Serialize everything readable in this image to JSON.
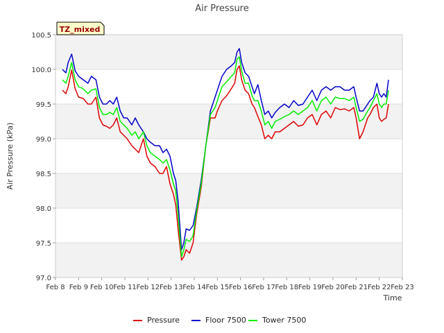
{
  "chart_data": {
    "type": "line",
    "title": "Air Pressure",
    "xlabel": "Time",
    "ylabel": "Air Pressure (kPa)",
    "badge": "TZ_mixed",
    "xlim": [
      8,
      23
    ],
    "ylim": [
      97.0,
      100.5
    ],
    "x_ticks": [
      8,
      9,
      10,
      11,
      12,
      13,
      14,
      15,
      16,
      17,
      18,
      19,
      20,
      21,
      22,
      23
    ],
    "x_tick_labels": [
      "Feb 8",
      "Feb 9",
      "Feb 10",
      "Feb 11",
      "Feb 12",
      "Feb 13",
      "Feb 14",
      "Feb 15",
      "Feb 16",
      "Feb 17",
      "Feb 18",
      "Feb 19",
      "Feb 20",
      "Feb 21",
      "Feb 22",
      "Feb 23"
    ],
    "y_ticks": [
      97.0,
      97.5,
      98.0,
      98.5,
      99.0,
      99.5,
      100.0,
      100.5
    ],
    "y_tick_labels": [
      "97.0",
      "97.5",
      "98.0",
      "98.5",
      "99.0",
      "99.5",
      "100.0",
      "100.5"
    ],
    "grid": true,
    "legend_position": "bottom-center",
    "x": [
      8.3,
      8.45,
      8.55,
      8.7,
      8.85,
      9.0,
      9.2,
      9.4,
      9.55,
      9.75,
      9.9,
      10.05,
      10.2,
      10.35,
      10.5,
      10.65,
      10.8,
      10.95,
      11.1,
      11.3,
      11.45,
      11.6,
      11.8,
      11.95,
      12.1,
      12.3,
      12.5,
      12.65,
      12.8,
      12.95,
      13.1,
      13.2,
      13.3,
      13.45,
      13.55,
      13.65,
      13.8,
      13.95,
      14.1,
      14.3,
      14.5,
      14.7,
      14.9,
      15.0,
      15.2,
      15.4,
      15.6,
      15.75,
      15.85,
      15.95,
      16.05,
      16.2,
      16.35,
      16.5,
      16.6,
      16.75,
      16.9,
      17.05,
      17.2,
      17.35,
      17.5,
      17.7,
      17.9,
      18.1,
      18.3,
      18.5,
      18.7,
      18.9,
      19.1,
      19.3,
      19.5,
      19.7,
      19.9,
      20.1,
      20.3,
      20.5,
      20.7,
      20.9,
      21.0,
      21.15,
      21.3,
      21.5,
      21.6,
      21.75,
      21.9,
      22.0,
      22.1,
      22.2,
      22.3,
      22.4
    ],
    "series": [
      {
        "name": "Pressure",
        "color": "#dd0000",
        "values": [
          99.7,
          99.65,
          99.75,
          99.99,
          99.72,
          99.6,
          99.58,
          99.5,
          99.5,
          99.6,
          99.3,
          99.2,
          99.18,
          99.15,
          99.2,
          99.3,
          99.1,
          99.05,
          99.0,
          98.9,
          98.85,
          98.8,
          99.0,
          98.75,
          98.65,
          98.6,
          98.5,
          98.5,
          98.6,
          98.35,
          98.2,
          98.05,
          97.7,
          97.25,
          97.3,
          97.4,
          97.35,
          97.5,
          97.9,
          98.3,
          98.9,
          99.3,
          99.3,
          99.4,
          99.55,
          99.62,
          99.72,
          99.8,
          100.0,
          100.05,
          99.85,
          99.7,
          99.65,
          99.5,
          99.45,
          99.32,
          99.2,
          99.0,
          99.05,
          99.0,
          99.1,
          99.1,
          99.15,
          99.2,
          99.25,
          99.18,
          99.2,
          99.3,
          99.35,
          99.2,
          99.35,
          99.4,
          99.3,
          99.45,
          99.42,
          99.43,
          99.4,
          99.45,
          99.3,
          99.0,
          99.1,
          99.3,
          99.35,
          99.45,
          99.5,
          99.3,
          99.25,
          99.28,
          99.3,
          99.5
        ]
      },
      {
        "name": "Floor 7500",
        "color": "#0000cc",
        "values": [
          100.0,
          99.95,
          100.1,
          100.22,
          99.98,
          99.9,
          99.85,
          99.8,
          99.9,
          99.85,
          99.6,
          99.5,
          99.5,
          99.55,
          99.5,
          99.6,
          99.4,
          99.3,
          99.3,
          99.2,
          99.3,
          99.2,
          99.1,
          99.0,
          98.95,
          98.9,
          98.9,
          98.8,
          98.85,
          98.75,
          98.5,
          98.4,
          98.1,
          97.4,
          97.5,
          97.7,
          97.68,
          97.75,
          98.0,
          98.4,
          98.9,
          99.4,
          99.6,
          99.7,
          99.9,
          100.0,
          100.05,
          100.1,
          100.25,
          100.3,
          100.1,
          99.95,
          99.9,
          99.75,
          99.65,
          99.78,
          99.55,
          99.35,
          99.4,
          99.3,
          99.38,
          99.45,
          99.5,
          99.45,
          99.55,
          99.48,
          99.5,
          99.6,
          99.7,
          99.55,
          99.7,
          99.75,
          99.7,
          99.75,
          99.75,
          99.7,
          99.7,
          99.75,
          99.6,
          99.4,
          99.4,
          99.5,
          99.55,
          99.6,
          99.8,
          99.65,
          99.6,
          99.65,
          99.6,
          99.85
        ]
      },
      {
        "name": "Tower 7500",
        "color": "#00ee00",
        "values": [
          99.85,
          99.8,
          99.9,
          100.1,
          99.85,
          99.75,
          99.72,
          99.65,
          99.7,
          99.72,
          99.45,
          99.35,
          99.35,
          99.38,
          99.35,
          99.45,
          99.25,
          99.2,
          99.15,
          99.05,
          99.1,
          99.0,
          99.1,
          98.9,
          98.8,
          98.75,
          98.7,
          98.65,
          98.7,
          98.55,
          98.35,
          98.25,
          97.9,
          97.3,
          97.4,
          97.55,
          97.52,
          97.6,
          97.95,
          98.35,
          98.9,
          99.35,
          99.45,
          99.55,
          99.75,
          99.82,
          99.9,
          99.95,
          100.15,
          100.18,
          99.98,
          99.8,
          99.8,
          99.62,
          99.55,
          99.55,
          99.4,
          99.2,
          99.25,
          99.15,
          99.25,
          99.28,
          99.32,
          99.35,
          99.4,
          99.35,
          99.4,
          99.45,
          99.55,
          99.4,
          99.55,
          99.6,
          99.5,
          99.6,
          99.58,
          99.58,
          99.55,
          99.6,
          99.45,
          99.25,
          99.28,
          99.4,
          99.45,
          99.55,
          99.65,
          99.5,
          99.45,
          99.5,
          99.5,
          99.7
        ]
      }
    ]
  }
}
